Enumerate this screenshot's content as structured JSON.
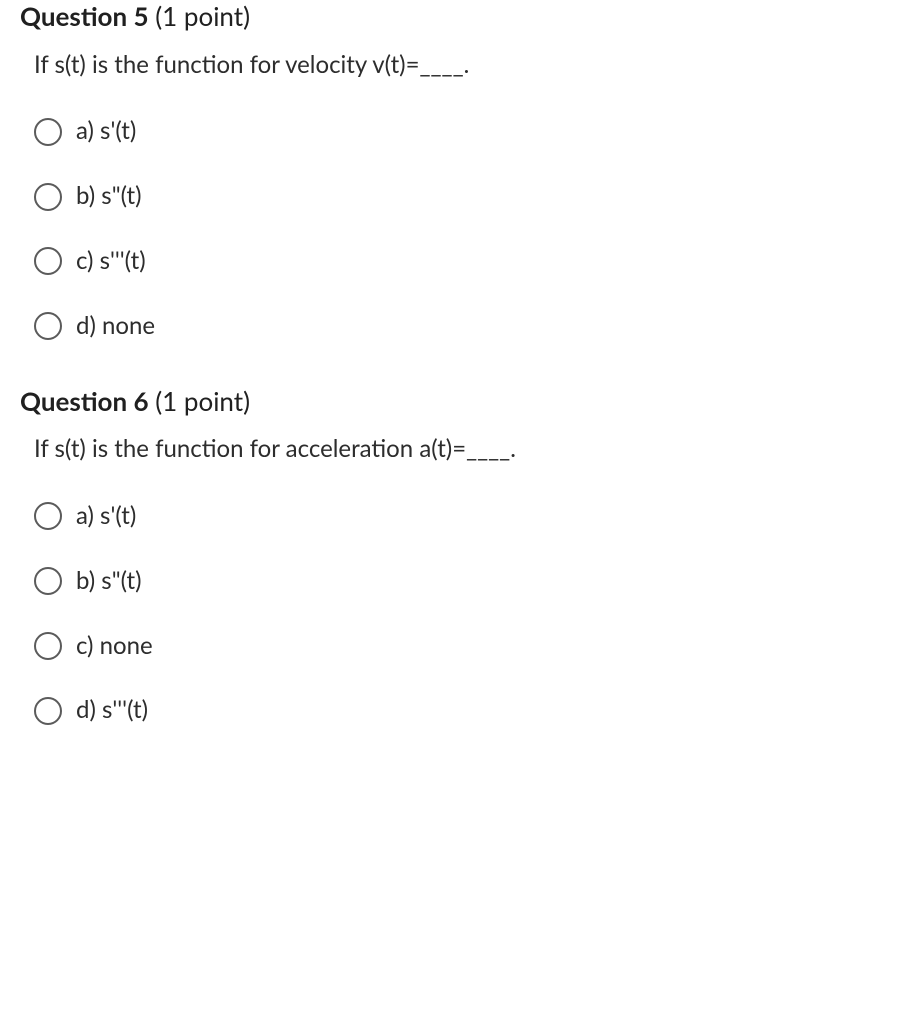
{
  "questions": [
    {
      "number": "Question 5",
      "points": "(1 point)",
      "prompt": "If s(t) is the function for velocity v(t)=____.",
      "options": [
        {
          "label": "a) s'(t)"
        },
        {
          "label": "b) s\"(t)"
        },
        {
          "label": "c) s'''(t)"
        },
        {
          "label": "d) none"
        }
      ]
    },
    {
      "number": "Question 6",
      "points": "(1 point)",
      "prompt": "If s(t) is the function for acceleration a(t)=____.",
      "options": [
        {
          "label": "a) s'(t)"
        },
        {
          "label": "b) s\"(t)"
        },
        {
          "label": "c) none"
        },
        {
          "label": "d) s'''(t)"
        }
      ]
    }
  ],
  "style": {
    "text_color": "#2d2d2d",
    "radio_border_color": "#5b5b5b",
    "background_color": "#ffffff",
    "header_fontsize": 26,
    "prompt_fontsize": 24,
    "option_fontsize": 24
  }
}
